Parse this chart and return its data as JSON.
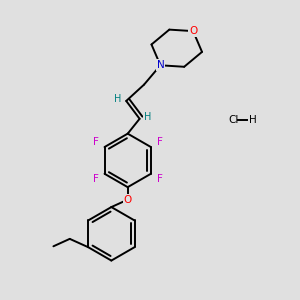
{
  "bg_color": "#e0e0e0",
  "bond_color": "#000000",
  "bond_width": 1.4,
  "atom_colors": {
    "F": "#cc00cc",
    "O": "#ff0000",
    "N": "#0000cc",
    "Cl": "#000000",
    "H": "#008080",
    "C": "#000000"
  },
  "figsize": [
    3.0,
    3.0
  ],
  "dpi": 100,
  "xlim": [
    0,
    10
  ],
  "ylim": [
    0,
    10
  ]
}
